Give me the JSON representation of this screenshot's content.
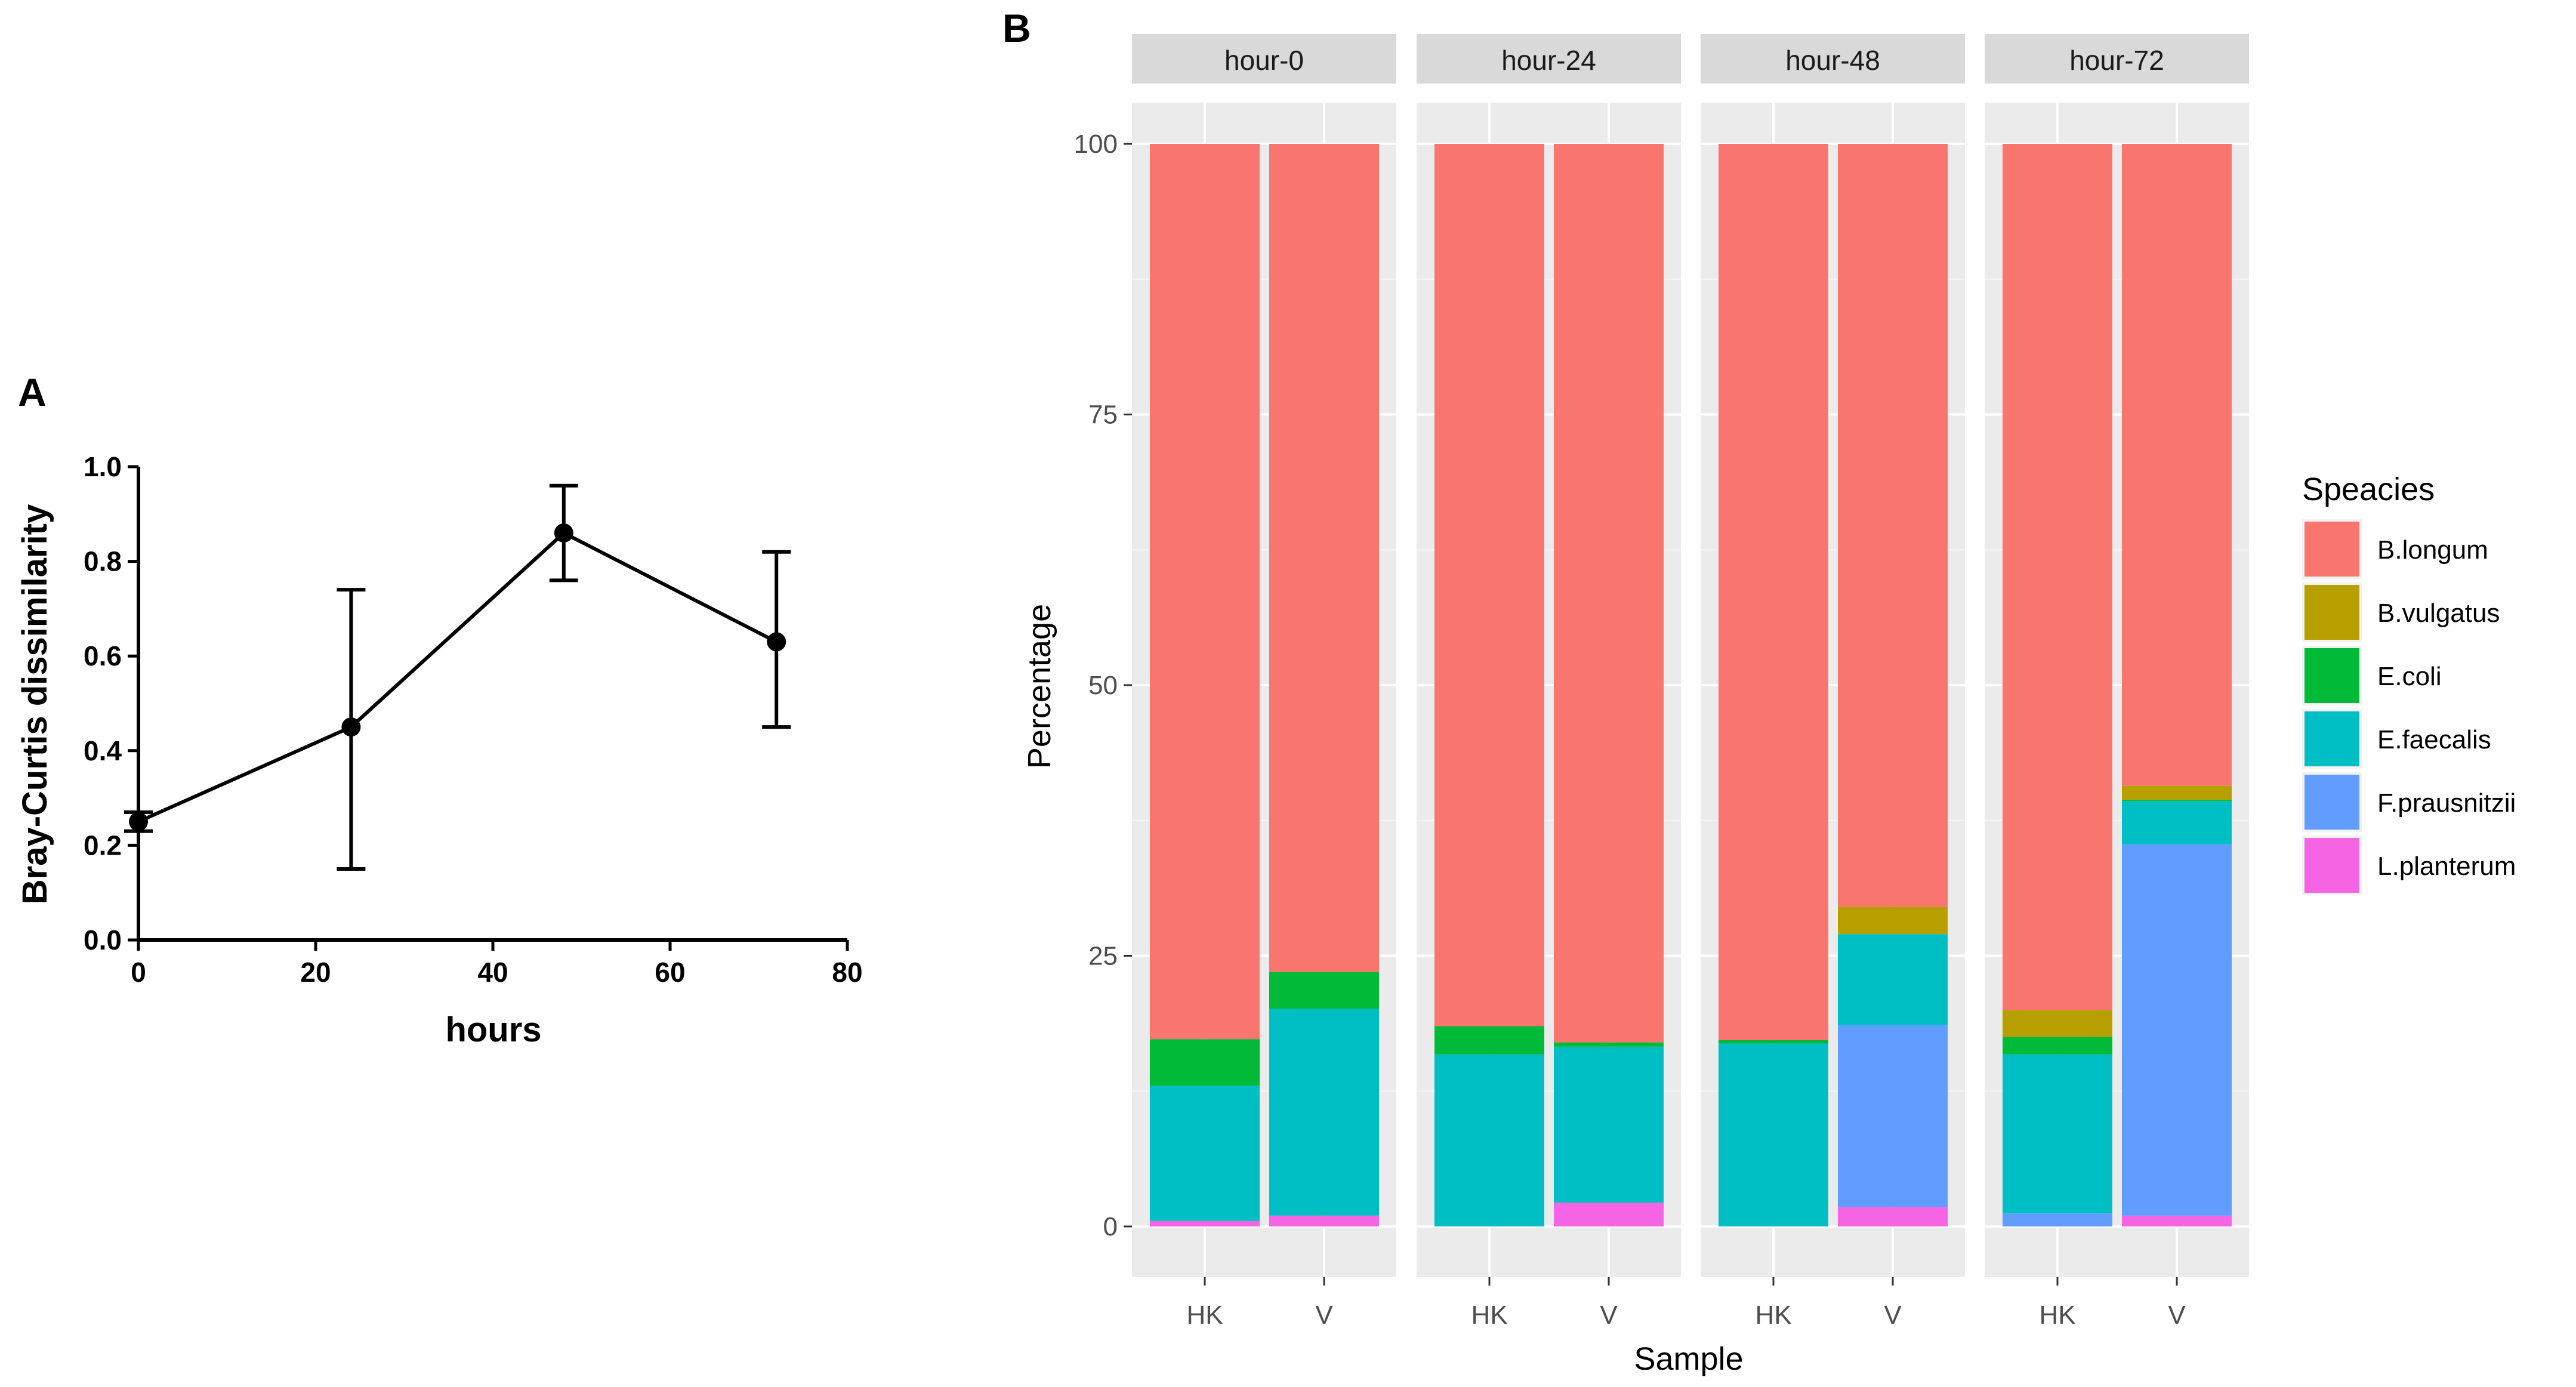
{
  "chart_data": [
    {
      "panel": "A",
      "type": "line",
      "xlabel": "hours",
      "ylabel": "Bray-Curtis dissimilarity",
      "xlim": [
        0,
        80
      ],
      "ylim": [
        0,
        1.0
      ],
      "xticks": [
        "0",
        "20",
        "40",
        "60",
        "80"
      ],
      "yticks": [
        "0.0",
        "0.2",
        "0.4",
        "0.6",
        "0.8",
        "1.0"
      ],
      "points": [
        {
          "x": 0,
          "y": 0.25,
          "err_low": 0.23,
          "err_high": 0.27
        },
        {
          "x": 24,
          "y": 0.45,
          "err_low": 0.15,
          "err_high": 0.74
        },
        {
          "x": 48,
          "y": 0.86,
          "err_low": 0.76,
          "err_high": 0.96
        },
        {
          "x": 72,
          "y": 0.63,
          "err_low": 0.45,
          "err_high": 0.82
        }
      ]
    },
    {
      "panel": "B",
      "type": "bar",
      "stacked": true,
      "xlabel": "Sample",
      "ylabel": "Percentage",
      "ylim": [
        0,
        100
      ],
      "yticks": [
        "0",
        "25",
        "50",
        "75",
        "100"
      ],
      "legend_title": "Speacies",
      "legend_position": "right",
      "species": [
        "B.longum",
        "B.vulgatus",
        "E.coli",
        "E.faecalis",
        "F.prausnitzii",
        "L.planterum"
      ],
      "colors": [
        "#F8766D",
        "#B79F00",
        "#00BA38",
        "#00BFC4",
        "#619CFF",
        "#F564E3"
      ],
      "facets": [
        {
          "label": "hour-0",
          "bars": [
            {
              "sample": "HK",
              "values": [
                82.7,
                0.0,
                4.3,
                12.5,
                0.0,
                0.5
              ]
            },
            {
              "sample": "V",
              "values": [
                76.5,
                0.0,
                3.4,
                19.1,
                0.0,
                1.0
              ]
            }
          ]
        },
        {
          "label": "hour-24",
          "bars": [
            {
              "sample": "HK",
              "values": [
                81.5,
                0.0,
                2.6,
                15.9,
                0.0,
                0.0
              ]
            },
            {
              "sample": "V",
              "values": [
                83.0,
                0.0,
                0.4,
                14.4,
                0.0,
                2.2
              ]
            }
          ]
        },
        {
          "label": "hour-48",
          "bars": [
            {
              "sample": "HK",
              "values": [
                82.8,
                0.0,
                0.3,
                16.9,
                0.0,
                0.0
              ]
            },
            {
              "sample": "V",
              "values": [
                70.5,
                2.5,
                0.0,
                8.4,
                16.8,
                1.8
              ]
            }
          ]
        },
        {
          "label": "hour-72",
          "bars": [
            {
              "sample": "HK",
              "values": [
                80.0,
                2.5,
                1.6,
                14.7,
                1.2,
                0.0
              ]
            },
            {
              "sample": "V",
              "values": [
                59.3,
                1.3,
                0.1,
                4.0,
                34.3,
                1.0
              ]
            }
          ]
        }
      ]
    }
  ],
  "panel_labels": {
    "a": "A",
    "b": "B"
  }
}
